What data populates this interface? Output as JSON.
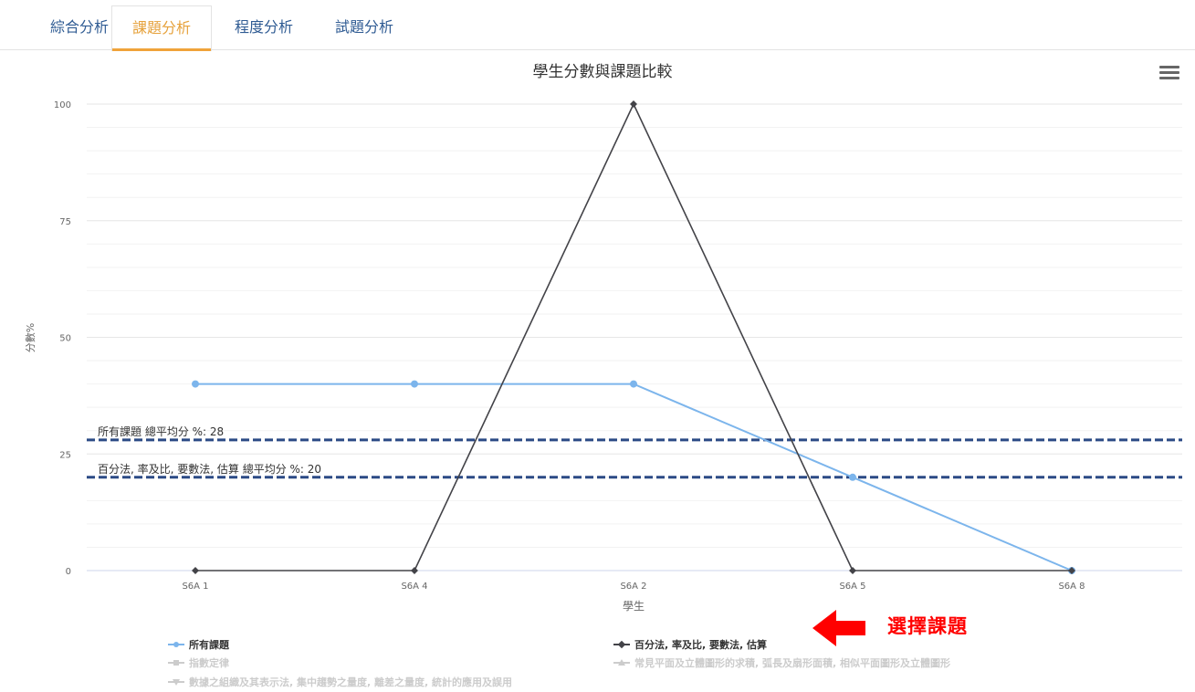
{
  "tabs": [
    {
      "label": "綜合分析",
      "active": false
    },
    {
      "label": "課題分析",
      "active": true
    },
    {
      "label": "程度分析",
      "active": false
    },
    {
      "label": "試題分析",
      "active": false
    }
  ],
  "chart_data": {
    "type": "line",
    "title": "學生分數與課題比較",
    "xlabel": "學生",
    "ylabel": "分數%",
    "categories": [
      "S6A 1",
      "S6A 4",
      "S6A 2",
      "S6A 5",
      "S6A 8"
    ],
    "ylim": [
      0,
      100
    ],
    "yticks": [
      0,
      25,
      50,
      75,
      100
    ],
    "grid": true,
    "series": [
      {
        "name": "所有課題",
        "values": [
          40,
          40,
          40,
          20,
          0
        ],
        "color": "#7cb5ec",
        "marker": "circle",
        "visible": true
      },
      {
        "name": "百分法, 率及比, 要數法, 估算",
        "values": [
          0,
          0,
          100,
          0,
          0
        ],
        "color": "#434348",
        "marker": "diamond",
        "visible": true
      }
    ],
    "plot_lines": [
      {
        "label": "所有課題 總平均分 %:  28",
        "value": 28,
        "color": "#2b4a85"
      },
      {
        "label": "百分法, 率及比, 要數法, 估算 總平均分 %:  20",
        "value": 20,
        "color": "#2b4a85"
      }
    ],
    "legend": {
      "placement": "bottom",
      "items": [
        {
          "name": "所有課題",
          "marker": "circle",
          "visible": true
        },
        {
          "name": "百分法, 率及比, 要數法, 估算",
          "marker": "diamond",
          "visible": true
        },
        {
          "name": "指數定律",
          "marker": "square",
          "visible": false
        },
        {
          "name": "常見平面及立體圖形的求積, 弧長及扇形面積, 相似平面圖形及立體圖形",
          "marker": "triangle",
          "visible": false
        },
        {
          "name": "數據之組織及其表示法, 集中趨勢之量度, 離差之量度, 統計的應用及誤用",
          "marker": "triangle-down",
          "visible": false
        }
      ]
    }
  },
  "annotation": {
    "text": "選擇課題",
    "color": "#ff0000",
    "icon": "left-arrow-icon"
  },
  "menu": {
    "icon": "hamburger-menu-icon"
  }
}
